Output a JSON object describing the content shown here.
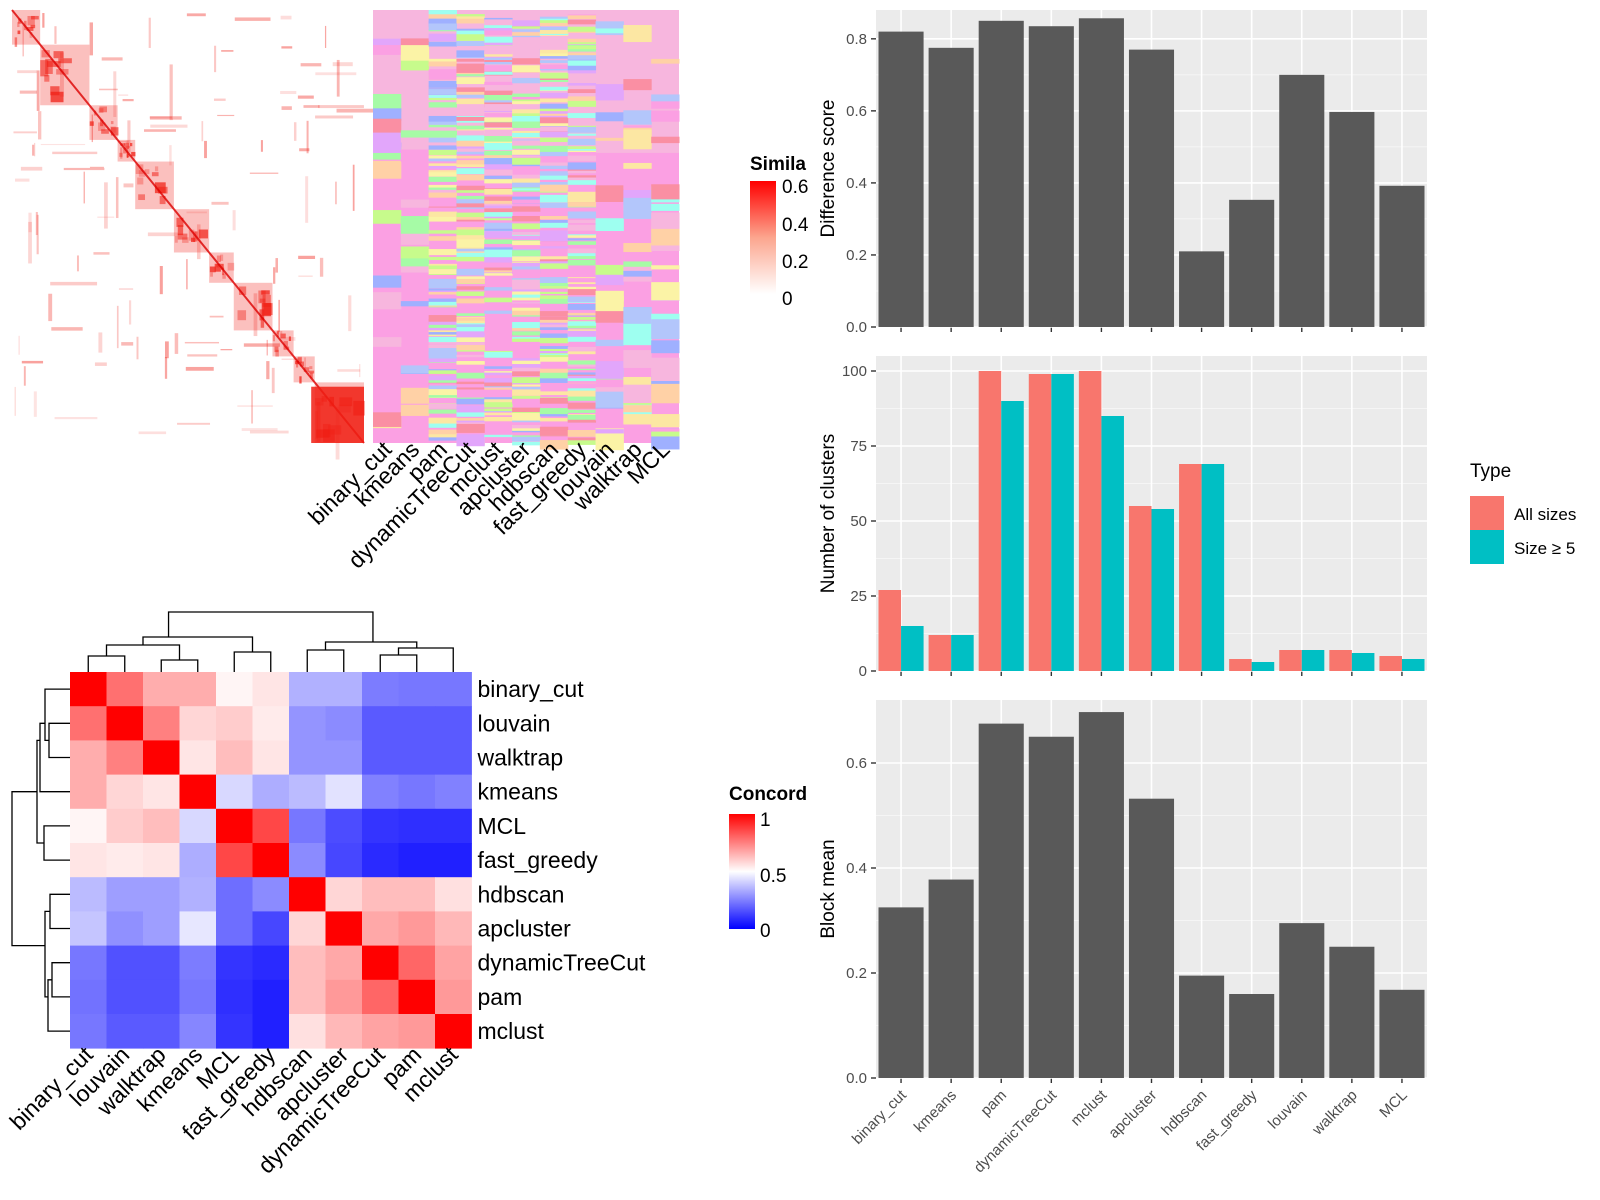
{
  "similarity_heatmap": {
    "legend_title": "Simila",
    "legend_ticks": [
      "0.6",
      "0.4",
      "0.2",
      "0"
    ],
    "method_columns": [
      "binary_cut",
      "kmeans",
      "pam",
      "dynamicTreeCut",
      "mclust",
      "apcluster",
      "hdbscan",
      "fast_greedy",
      "louvain",
      "walktrap",
      "MCL"
    ],
    "block_count": 11
  },
  "concordance_heatmap": {
    "legend_title": "Concord",
    "legend_ticks": [
      "1",
      "0.5",
      "0"
    ],
    "row_labels": [
      "binary_cut",
      "louvain",
      "walktrap",
      "kmeans",
      "MCL",
      "fast_greedy",
      "hdbscan",
      "apcluster",
      "dynamicTreeCut",
      "pam",
      "mclust"
    ],
    "col_labels": [
      "binary_cut",
      "louvain",
      "walktrap",
      "kmeans",
      "MCL",
      "fast_greedy",
      "hdbscan",
      "apcluster",
      "dynamicTreeCut",
      "pam",
      "mclust"
    ],
    "matrix": [
      [
        1.0,
        0.78,
        0.66,
        0.66,
        0.52,
        0.55,
        0.34,
        0.34,
        0.23,
        0.22,
        0.22
      ],
      [
        0.78,
        1.0,
        0.75,
        0.58,
        0.6,
        0.54,
        0.28,
        0.26,
        0.16,
        0.16,
        0.16
      ],
      [
        0.66,
        0.75,
        1.0,
        0.55,
        0.63,
        0.55,
        0.28,
        0.28,
        0.16,
        0.16,
        0.16
      ],
      [
        0.66,
        0.58,
        0.55,
        1.0,
        0.42,
        0.33,
        0.36,
        0.44,
        0.24,
        0.22,
        0.24
      ],
      [
        0.52,
        0.6,
        0.63,
        0.42,
        1.0,
        0.86,
        0.22,
        0.13,
        0.08,
        0.07,
        0.07
      ],
      [
        0.55,
        0.54,
        0.55,
        0.33,
        0.86,
        1.0,
        0.26,
        0.12,
        0.06,
        0.04,
        0.04
      ],
      [
        0.36,
        0.3,
        0.3,
        0.34,
        0.2,
        0.26,
        1.0,
        0.58,
        0.63,
        0.63,
        0.56
      ],
      [
        0.38,
        0.27,
        0.3,
        0.45,
        0.2,
        0.12,
        0.58,
        1.0,
        0.67,
        0.7,
        0.64
      ],
      [
        0.22,
        0.14,
        0.14,
        0.23,
        0.08,
        0.06,
        0.63,
        0.67,
        1.0,
        0.8,
        0.68
      ],
      [
        0.21,
        0.14,
        0.14,
        0.22,
        0.07,
        0.04,
        0.63,
        0.7,
        0.8,
        1.0,
        0.7
      ],
      [
        0.22,
        0.16,
        0.16,
        0.25,
        0.08,
        0.04,
        0.56,
        0.64,
        0.68,
        0.7,
        1.0
      ]
    ]
  },
  "chart_data": [
    {
      "type": "bar",
      "categories": [
        "binary_cut",
        "kmeans",
        "pam",
        "dynamicTreeCut",
        "mclust",
        "apcluster",
        "hdbscan",
        "fast_greedy",
        "louvain",
        "walktrap",
        "MCL"
      ],
      "values": [
        0.82,
        0.775,
        0.85,
        0.835,
        0.857,
        0.77,
        0.21,
        0.353,
        0.7,
        0.597,
        0.392
      ],
      "xlabel": "",
      "ylabel": "Difference score",
      "ylim": [
        0,
        0.88
      ],
      "yticks": [
        "0.0",
        "0.2",
        "0.4",
        "0.6",
        "0.8"
      ],
      "grid": true
    },
    {
      "type": "bar",
      "categories": [
        "binary_cut",
        "kmeans",
        "pam",
        "dynamicTreeCut",
        "mclust",
        "apcluster",
        "hdbscan",
        "fast_greedy",
        "louvain",
        "walktrap",
        "MCL"
      ],
      "series": [
        {
          "name": "All sizes",
          "color": "#f8766d",
          "values": [
            27,
            12,
            100,
            99,
            100,
            55,
            69,
            4,
            7,
            7,
            5
          ]
        },
        {
          "name": "Size ≥ 5",
          "color": "#00bfc4",
          "values": [
            15,
            12,
            90,
            99,
            85,
            54,
            69,
            3,
            7,
            6,
            4
          ]
        }
      ],
      "xlabel": "",
      "ylabel": "Number of clusters",
      "ylim": [
        0,
        105
      ],
      "yticks": [
        "0",
        "25",
        "50",
        "75",
        "100"
      ],
      "legend_title": "Type",
      "legend_position": "right",
      "grid": true
    },
    {
      "type": "bar",
      "categories": [
        "binary_cut",
        "kmeans",
        "pam",
        "dynamicTreeCut",
        "mclust",
        "apcluster",
        "hdbscan",
        "fast_greedy",
        "louvain",
        "walktrap",
        "MCL"
      ],
      "values": [
        0.325,
        0.378,
        0.675,
        0.65,
        0.697,
        0.532,
        0.195,
        0.16,
        0.295,
        0.25,
        0.168
      ],
      "xlabel": "",
      "ylabel": "Block mean",
      "ylim": [
        0,
        0.72
      ],
      "yticks": [
        "0.0",
        "0.2",
        "0.4",
        "0.6"
      ],
      "grid": true
    }
  ]
}
